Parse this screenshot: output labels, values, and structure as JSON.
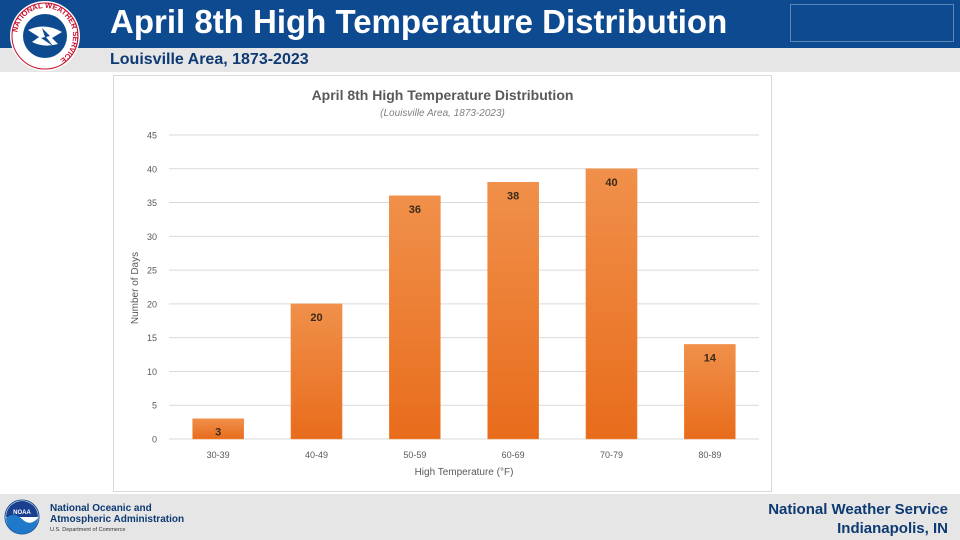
{
  "header": {
    "title": "April 8th High Temperature Distribution",
    "subtitle": "Louisville Area, 1873-2023"
  },
  "logo": {
    "ring_text": "NATIONAL WEATHER SERVICE",
    "icon": "nws-logo-icon"
  },
  "colors": {
    "header_bg": "#0d4a8f",
    "bar_top": "#f0904a",
    "bar_bottom": "#e86c1c",
    "label_text": "#3a2a1a"
  },
  "chart_data": {
    "type": "bar",
    "title": "April 8th High Temperature Distribution",
    "subtitle": "(Louisville Area, 1873-2023)",
    "xlabel": "High Temperature (°F)",
    "ylabel": "Number of Days",
    "categories": [
      "30-39",
      "40-49",
      "50-59",
      "60-69",
      "70-79",
      "80-89"
    ],
    "values": [
      3,
      20,
      36,
      38,
      40,
      14
    ],
    "ylim": [
      0,
      45
    ],
    "yticks": [
      0,
      5,
      10,
      15,
      20,
      25,
      30,
      35,
      40,
      45
    ],
    "grid": true,
    "data_labels": true
  },
  "footer": {
    "noaa_line1": "National Oceanic and",
    "noaa_line2": "Atmospheric Administration",
    "noaa_dept": "U.S. Department of Commerce",
    "noaa_logo_text": "NOAA",
    "office_line1": "National Weather Service",
    "office_line2": "Indianapolis, IN"
  }
}
